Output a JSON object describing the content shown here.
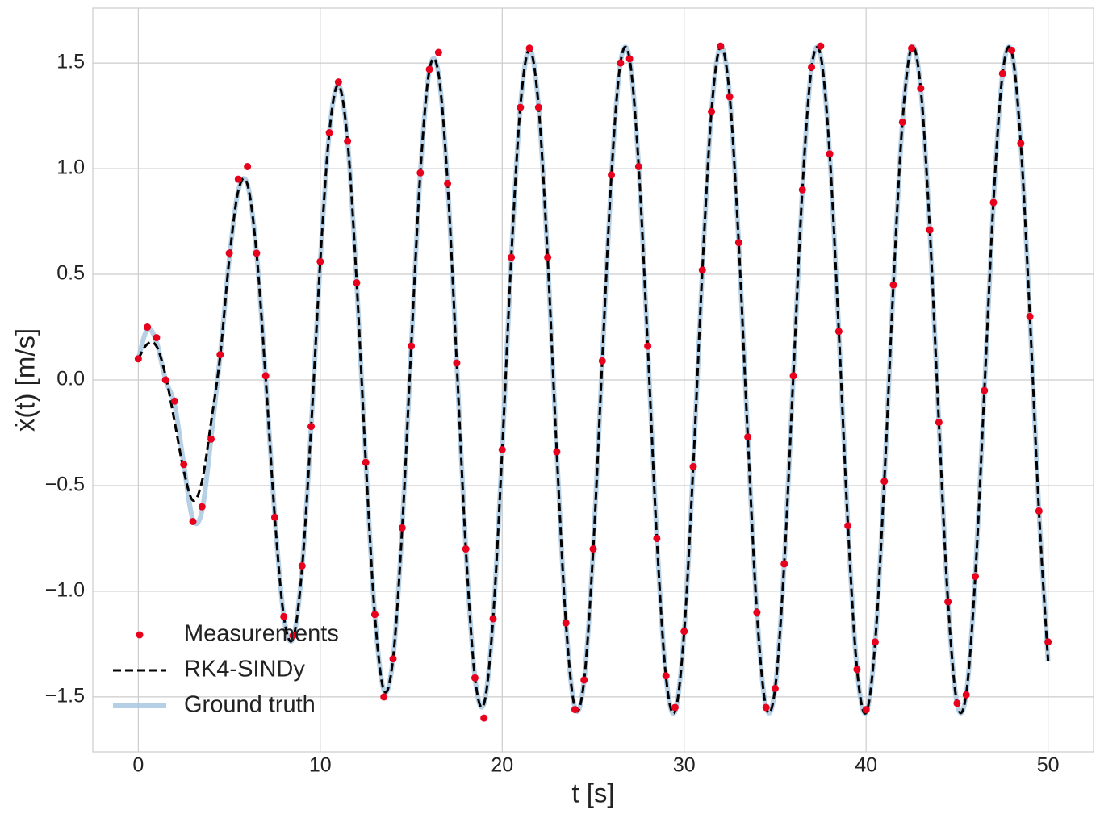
{
  "chart_data": {
    "type": "line",
    "xlabel": "t [s]",
    "ylabel": "ẋ(t) [m/s]",
    "xlim": [
      -2.5,
      52.5
    ],
    "ylim": [
      -1.76,
      1.76
    ],
    "xticks": [
      0,
      10,
      20,
      30,
      40,
      50
    ],
    "yticks": [
      {
        "value": -1.5,
        "label": "−1.5"
      },
      {
        "value": -1.0,
        "label": "−1.0"
      },
      {
        "value": -0.5,
        "label": "−0.5"
      },
      {
        "value": 0,
        "label": "0.0"
      },
      0.5,
      {
        "value": 1.0,
        "label": "1.0"
      },
      1.5
    ],
    "grid": true,
    "legend": "lower left",
    "x": [
      0,
      0.5,
      1,
      1.5,
      2,
      2.5,
      3,
      3.5,
      4,
      4.5,
      5,
      5.5,
      6,
      6.5,
      7,
      7.5,
      8,
      8.5,
      9,
      9.5,
      10,
      10.5,
      11,
      11.5,
      12,
      12.5,
      13,
      13.5,
      14,
      14.5,
      15,
      15.5,
      16,
      16.5,
      17,
      17.5,
      18,
      18.5,
      19,
      19.5,
      20,
      20.5,
      21,
      21.5,
      22,
      22.5,
      23,
      23.5,
      24,
      24.5,
      25,
      25.5,
      26,
      26.5,
      27,
      27.5,
      28,
      28.5,
      29,
      29.5,
      30,
      30.5,
      31,
      31.5,
      32,
      32.5,
      33,
      33.5,
      34,
      34.5,
      35,
      35.5,
      36,
      36.5,
      37,
      37.5,
      38,
      38.5,
      39,
      39.5,
      40,
      40.5,
      41,
      41.5,
      42,
      42.5,
      43,
      43.5,
      44,
      44.5,
      45,
      45.5,
      46,
      46.5,
      47,
      47.5,
      48,
      48.5,
      49,
      49.5,
      50
    ],
    "series": [
      {
        "name": "Measurements",
        "style": "markers",
        "color": "#e8001c",
        "values": [
          0.1,
          0.25,
          0.2,
          0.0,
          -0.1,
          -0.4,
          -0.67,
          -0.6,
          -0.28,
          0.12,
          0.6,
          0.95,
          1.01,
          0.6,
          0.02,
          -0.65,
          -1.12,
          -1.21,
          -0.88,
          -0.22,
          0.56,
          1.17,
          1.41,
          1.13,
          0.46,
          -0.39,
          -1.11,
          -1.5,
          -1.32,
          -0.7,
          0.16,
          0.98,
          1.47,
          1.55,
          0.93,
          0.08,
          -0.8,
          -1.41,
          -1.6,
          -1.13,
          -0.33,
          0.58,
          1.29,
          1.57,
          1.29,
          0.58,
          -0.34,
          -1.15,
          -1.56,
          -1.42,
          -0.8,
          0.09,
          0.97,
          1.5,
          1.52,
          1.01,
          0.16,
          -0.75,
          -1.4,
          -1.55,
          -1.19,
          -0.41,
          0.52,
          1.27,
          1.58,
          1.34,
          0.65,
          -0.27,
          -1.1,
          -1.55,
          -1.46,
          -0.87,
          0.02,
          0.9,
          1.48,
          1.58,
          1.07,
          0.23,
          -0.69,
          -1.37,
          -1.56,
          -1.24,
          -0.48,
          0.45,
          1.22,
          1.57,
          1.38,
          0.71,
          -0.2,
          -1.05,
          -1.53,
          -1.49,
          -0.93,
          -0.05,
          0.84,
          1.45,
          1.56,
          1.12,
          0.3,
          -0.62,
          -1.24
        ]
      },
      {
        "name": "RK4-SINDy",
        "style": "dashed",
        "color": "#000000",
        "values": [
          0.1,
          0.17,
          0.16,
          0.02,
          -0.2,
          -0.43,
          -0.57,
          -0.48,
          -0.2,
          0.114,
          0.571,
          0.897,
          0.925,
          0.6,
          0.009,
          -0.647,
          -1.121,
          -1.224,
          -0.891,
          -0.222,
          0.56,
          1.173,
          1.396,
          1.132,
          0.464,
          -0.383,
          -1.113,
          -1.469,
          -1.318,
          -0.705,
          0.16,
          0.979,
          1.467,
          1.449,
          0.93,
          0.083,
          -0.797,
          -1.406,
          -1.532,
          -1.127,
          -0.332,
          0.58,
          1.295,
          1.564,
          1.294,
          0.575,
          -0.344,
          -1.145,
          -1.552,
          -1.423,
          -0.804,
          0.094,
          0.964,
          1.501,
          1.52,
          1.013,
          0.158,
          -0.752,
          -1.403,
          -1.569,
          -1.194,
          -0.408,
          0.52,
          1.269,
          1.578,
          1.345,
          0.646,
          -0.275,
          -1.101,
          -1.547,
          -1.46,
          -0.869,
          0.022,
          0.905,
          1.476,
          1.537,
          1.068,
          0.231,
          -0.687,
          -1.368,
          -1.575,
          -1.24,
          -0.477,
          0.45,
          1.223,
          1.574,
          1.381,
          0.713,
          -0.202,
          -1.048,
          -1.531,
          -1.487,
          -0.929,
          -0.051,
          0.845,
          1.449,
          1.553,
          1.12,
          0.302,
          -0.621,
          -1.329
        ]
      },
      {
        "name": "Ground truth",
        "style": "thick",
        "color": "#a9c8e2",
        "values": [
          0.1,
          0.24,
          0.18,
          0.0,
          -0.12,
          -0.4,
          -0.66,
          -0.62,
          -0.276,
          0.114,
          0.571,
          0.897,
          0.925,
          0.6,
          0.009,
          -0.647,
          -1.121,
          -1.224,
          -0.891,
          -0.222,
          0.56,
          1.173,
          1.396,
          1.132,
          0.464,
          -0.383,
          -1.113,
          -1.469,
          -1.318,
          -0.705,
          0.16,
          0.979,
          1.467,
          1.449,
          0.93,
          0.083,
          -0.797,
          -1.406,
          -1.532,
          -1.127,
          -0.332,
          0.58,
          1.295,
          1.564,
          1.294,
          0.575,
          -0.344,
          -1.145,
          -1.552,
          -1.423,
          -0.804,
          0.094,
          0.964,
          1.501,
          1.52,
          1.013,
          0.158,
          -0.752,
          -1.403,
          -1.569,
          -1.194,
          -0.408,
          0.52,
          1.269,
          1.578,
          1.345,
          0.646,
          -0.275,
          -1.101,
          -1.547,
          -1.46,
          -0.869,
          0.022,
          0.905,
          1.476,
          1.537,
          1.068,
          0.231,
          -0.687,
          -1.368,
          -1.575,
          -1.24,
          -0.477,
          0.45,
          1.223,
          1.574,
          1.381,
          0.713,
          -0.202,
          -1.048,
          -1.531,
          -1.487,
          -0.929,
          -0.051,
          0.845,
          1.449,
          1.553,
          1.12,
          0.302,
          -0.621,
          -1.329
        ]
      }
    ]
  }
}
